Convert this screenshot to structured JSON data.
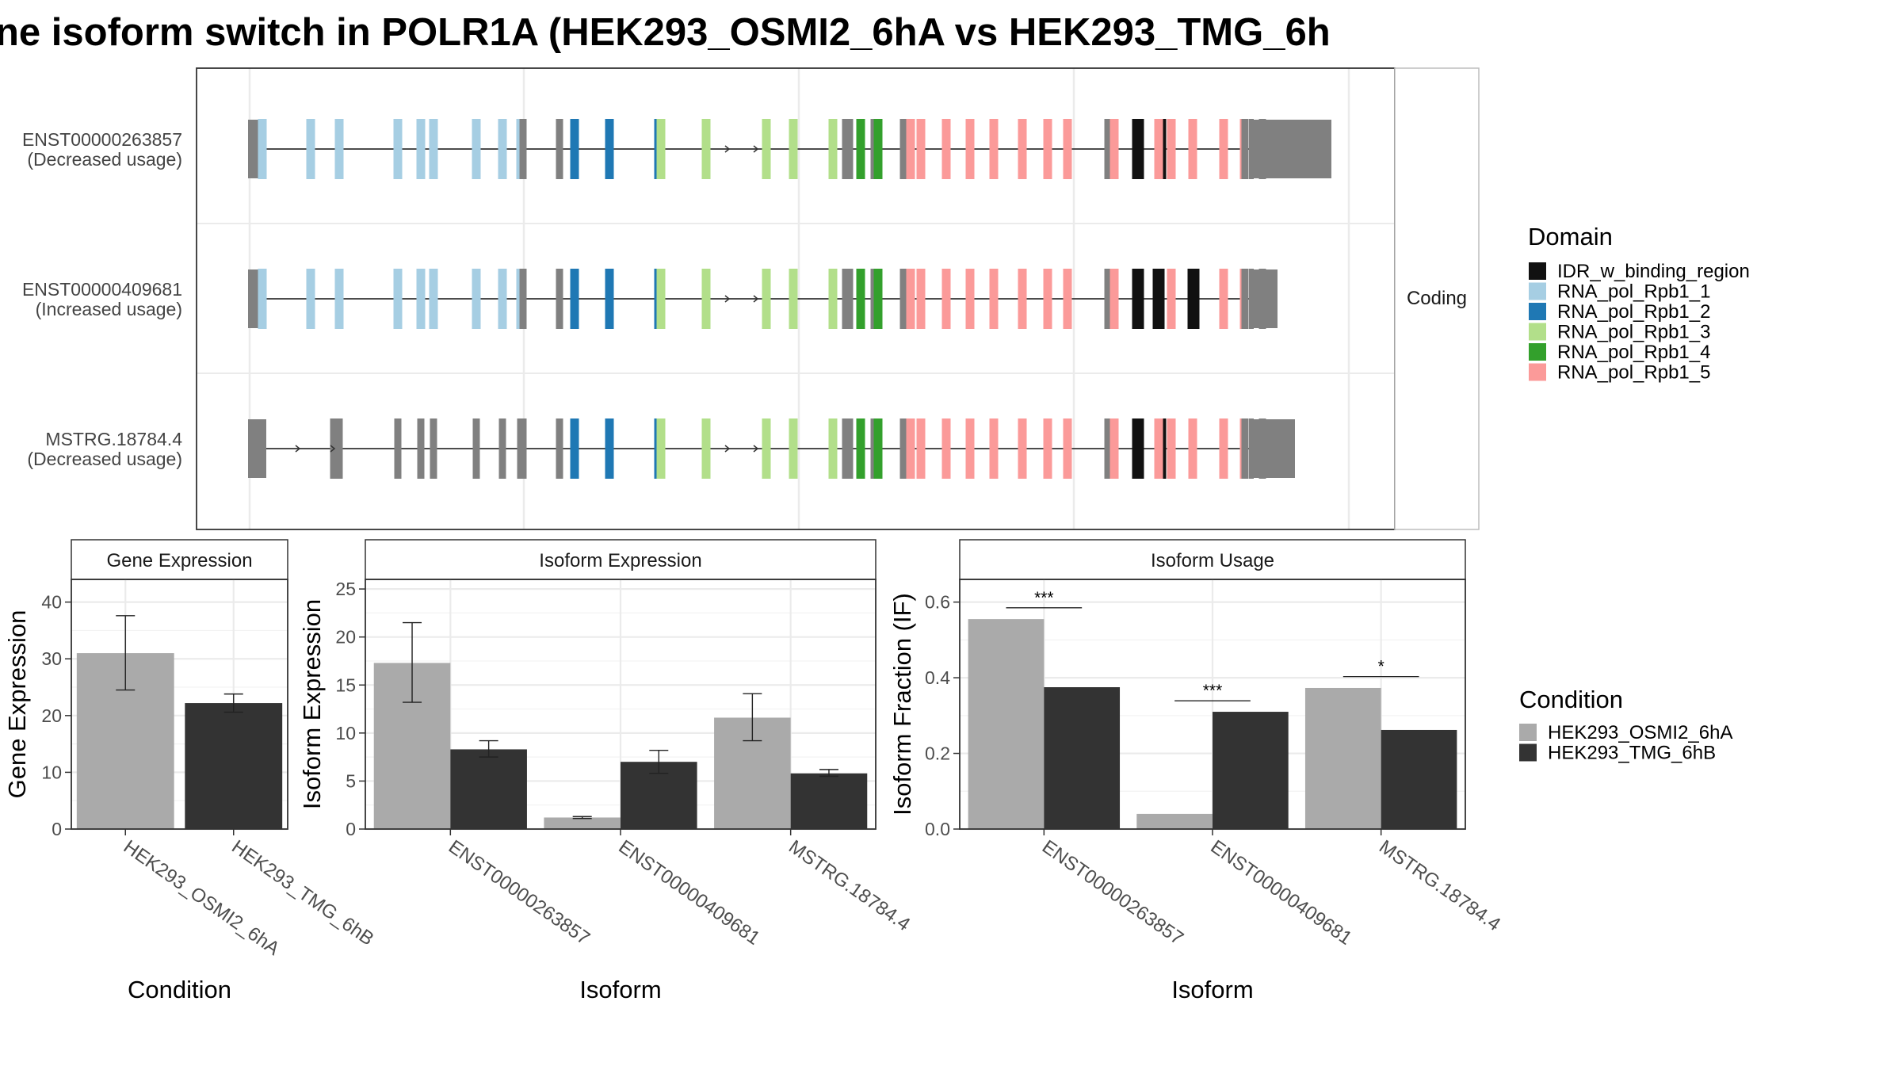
{
  "title": "ne isoform switch in POLR1A (HEK293_OSMI2_6hA vs HEK293_TMG_6h",
  "colors": {
    "condition_a": "#AAAAAA",
    "condition_b": "#333333",
    "exon_plain": "#808080",
    "panel_border": "#333333",
    "grid": "#EBEBEB",
    "strip_fill": "#FFFFFF"
  },
  "chart_data": [
    {
      "type": "gene-structure",
      "strip_label": "Coding",
      "isoforms": [
        {
          "id": "ENST00000263857",
          "label": "ENST00000263857",
          "usage": "(Decreased usage)",
          "utr3": "long"
        },
        {
          "id": "ENST00000409681",
          "label": "ENST00000409681",
          "usage": "(Increased usage)",
          "utr3": "short"
        },
        {
          "id": "MSTRG.18784.4",
          "label": "MSTRG.18784.4",
          "usage": "(Decreased usage)",
          "utr3": "medium"
        }
      ],
      "legend": {
        "title": "Domain",
        "entries": [
          {
            "name": "IDR_w_binding_region",
            "color": "#111111"
          },
          {
            "name": "RNA_pol_Rpb1_1",
            "color": "#A6CEE3"
          },
          {
            "name": "RNA_pol_Rpb1_2",
            "color": "#1F78B4"
          },
          {
            "name": "RNA_pol_Rpb1_3",
            "color": "#B2DF8A"
          },
          {
            "name": "RNA_pol_Rpb1_4",
            "color": "#33A02C"
          },
          {
            "name": "RNA_pol_Rpb1_5",
            "color": "#FB9A99"
          }
        ]
      }
    },
    {
      "type": "bar",
      "panel": "Gene Expression",
      "xlabel": "Condition",
      "ylabel": "Gene Expression",
      "categories": [
        "HEK293_OSMI2_6hA",
        "HEK293_TMG_6hB"
      ],
      "values": [
        31,
        22.2
      ],
      "error_low": [
        24.5,
        20.6
      ],
      "error_high": [
        37.6,
        23.8
      ],
      "ylim": [
        0,
        44
      ],
      "yticks": [
        0,
        10,
        20,
        30,
        40
      ],
      "grid": true
    },
    {
      "type": "bar",
      "panel": "Isoform Expression",
      "xlabel": "Isoform",
      "ylabel": "Isoform Expression",
      "categories": [
        "ENST00000263857",
        "ENST00000409681",
        "MSTRG.18784.4"
      ],
      "series": [
        {
          "name": "HEK293_OSMI2_6hA",
          "values": [
            17.3,
            1.2,
            11.6
          ],
          "error_low": [
            13.2,
            1.1,
            9.2
          ],
          "error_high": [
            21.5,
            1.3,
            14.1
          ]
        },
        {
          "name": "HEK293_TMG_6hB",
          "values": [
            8.3,
            7.0,
            5.8
          ],
          "error_low": [
            7.5,
            5.8,
            5.5
          ],
          "error_high": [
            9.2,
            8.2,
            6.2
          ]
        }
      ],
      "ylim": [
        0,
        26
      ],
      "yticks": [
        0,
        5,
        10,
        15,
        20,
        25
      ],
      "grid": true
    },
    {
      "type": "bar",
      "panel": "Isoform Usage",
      "xlabel": "Isoform",
      "ylabel": "Isoform Fraction (IF)",
      "categories": [
        "ENST00000263857",
        "ENST00000409681",
        "MSTRG.18784.4"
      ],
      "series": [
        {
          "name": "HEK293_OSMI2_6hA",
          "values": [
            0.555,
            0.04,
            0.373
          ]
        },
        {
          "name": "HEK293_TMG_6hB",
          "values": [
            0.375,
            0.31,
            0.262
          ]
        }
      ],
      "significance": [
        "***",
        "***",
        "*"
      ],
      "significance_level": [
        0.585,
        0.339,
        0.403
      ],
      "ylim": [
        0,
        0.66
      ],
      "yticks": [
        "0.0",
        "0.2",
        "0.4",
        "0.6"
      ],
      "grid": true,
      "legend": {
        "title": "Condition",
        "entries": [
          {
            "name": "HEK293_OSMI2_6hA",
            "color": "#AAAAAA"
          },
          {
            "name": "HEK293_TMG_6hB",
            "color": "#333333"
          }
        ]
      }
    }
  ]
}
